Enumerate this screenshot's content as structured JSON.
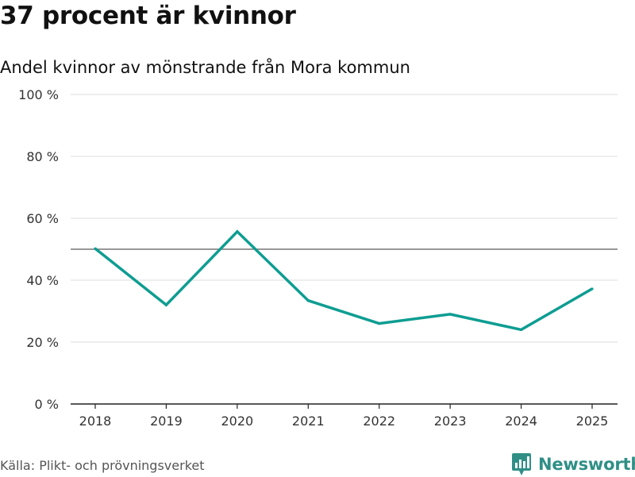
{
  "header": {
    "title": "37 procent är kvinnor",
    "subtitle": "Andel kvinnor av mönstrande från Mora kommun"
  },
  "footer": {
    "source": "Källa: Plikt- och prövningsverket",
    "brand": "Newsworthy"
  },
  "colors": {
    "line": "#0e9d92",
    "reference": "#777777",
    "grid": "#dddddd",
    "brand": "#2f8f86"
  },
  "chart_data": {
    "type": "line",
    "title": "37 procent är kvinnor",
    "subtitle": "Andel kvinnor av mönstrande från Mora kommun",
    "xlabel": "",
    "ylabel": "",
    "categories": [
      "2018",
      "2019",
      "2020",
      "2021",
      "2022",
      "2023",
      "2024",
      "2025"
    ],
    "series": [
      {
        "name": "Andel kvinnor",
        "values": [
          50.2,
          32.0,
          55.7,
          33.4,
          26.0,
          29.0,
          24.0,
          37.2
        ]
      }
    ],
    "reference_line": 50,
    "ylim": [
      0,
      100
    ],
    "yticks": [
      0,
      20,
      40,
      60,
      80,
      100
    ],
    "ytick_labels": [
      "0 %",
      "20 %",
      "40 %",
      "60 %",
      "80 %",
      "100 %"
    ],
    "grid": true
  }
}
